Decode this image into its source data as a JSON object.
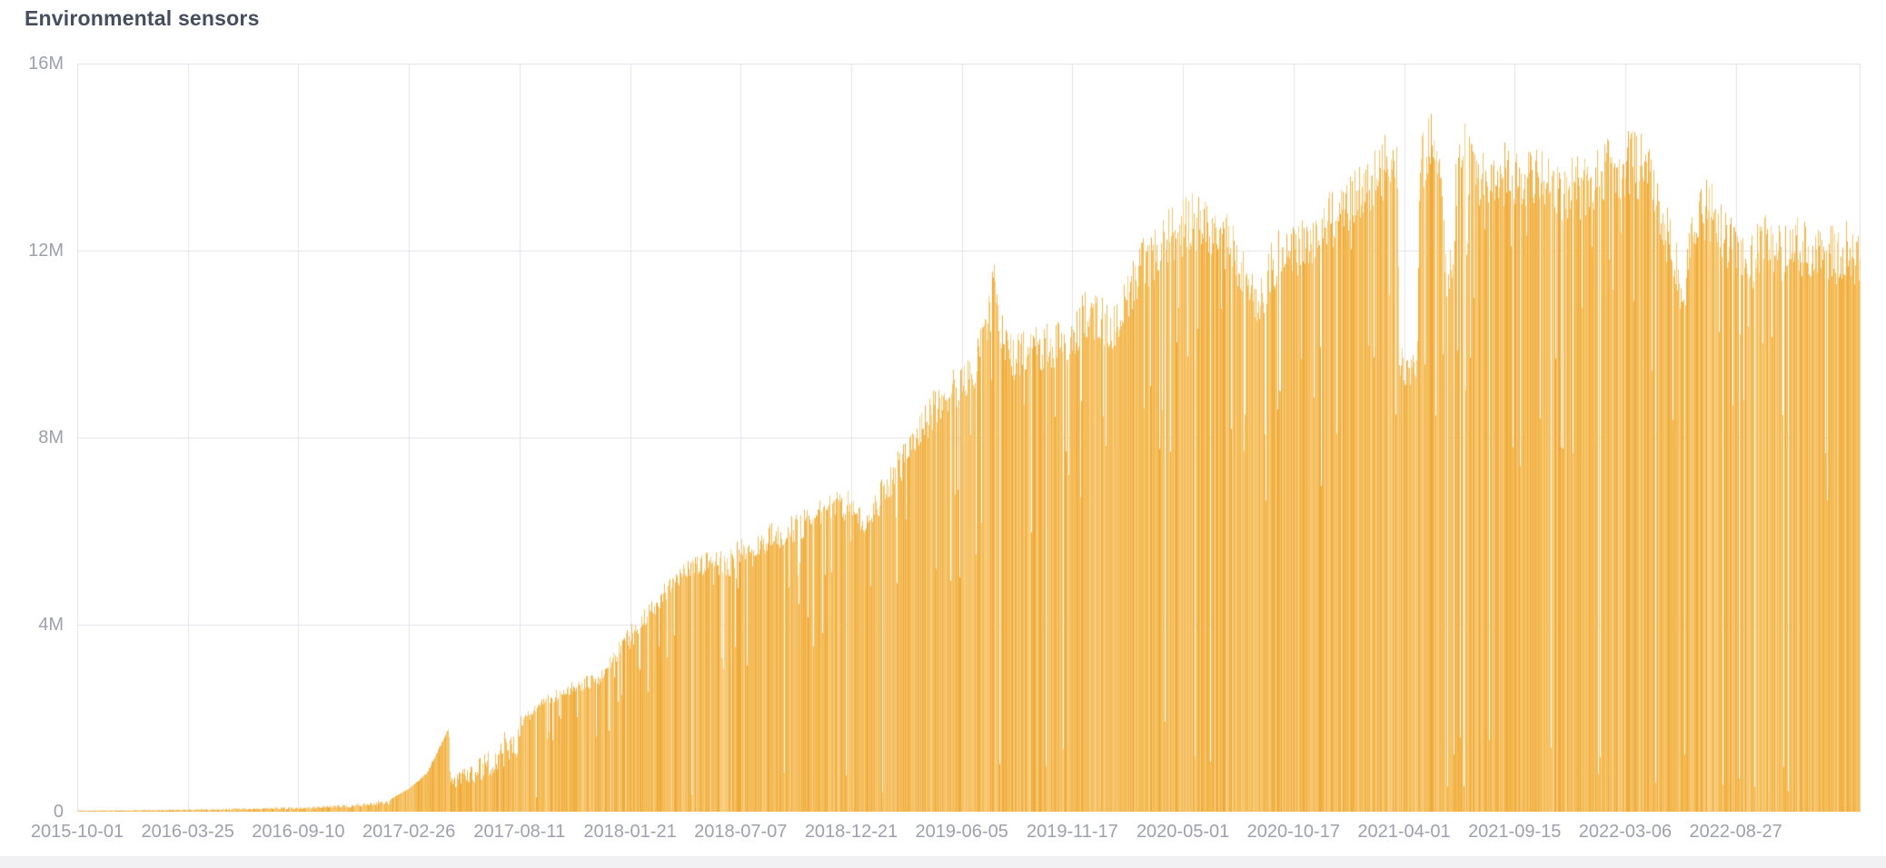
{
  "header": {
    "title": "Environmental sensors"
  },
  "chart_data": {
    "type": "bar",
    "title": "Environmental sensors",
    "xlabel": "",
    "ylabel": "",
    "legend": "none",
    "grid": true,
    "x_axis": {
      "start": "2015-10-01",
      "end_approx": "2023-03",
      "tick_labels": [
        "2015-10-01",
        "2016-03-25",
        "2016-09-10",
        "2017-02-26",
        "2017-08-11",
        "2018-01-21",
        "2018-07-07",
        "2018-12-21",
        "2019-06-05",
        "2019-11-17",
        "2020-05-01",
        "2020-10-17",
        "2021-04-01",
        "2021-09-15",
        "2022-03-06",
        "2022-08-27"
      ]
    },
    "y_axis": {
      "tick_labels": [
        "0",
        "4M",
        "8M",
        "12M",
        "16M"
      ],
      "tick_values": [
        0,
        4000000,
        8000000,
        12000000,
        16000000
      ],
      "range": [
        0,
        16000000
      ]
    },
    "series": [
      {
        "name": "Environmental sensors",
        "granularity": "daily bars (~2700 bars), upper envelope sampled below",
        "values_unit": "millions",
        "envelope_points": [
          [
            0.0,
            0.02
          ],
          [
            0.0621,
            0.05
          ],
          [
            0.1238,
            0.1
          ],
          [
            0.1554,
            0.16
          ],
          [
            0.1757,
            0.28
          ],
          [
            0.1859,
            0.5
          ],
          [
            0.1961,
            0.85
          ],
          [
            0.2083,
            1.82
          ],
          [
            0.2094,
            0.72
          ],
          [
            0.2175,
            0.95
          ],
          [
            0.2318,
            1.4
          ],
          [
            0.2481,
            2.05
          ],
          [
            0.2623,
            2.5
          ],
          [
            0.2776,
            2.8
          ],
          [
            0.2929,
            3.0
          ],
          [
            0.3102,
            4.0
          ],
          [
            0.3285,
            4.85
          ],
          [
            0.3438,
            5.5
          ],
          [
            0.3581,
            5.65
          ],
          [
            0.3642,
            5.5
          ],
          [
            0.3719,
            5.9
          ],
          [
            0.3897,
            6.2
          ],
          [
            0.41,
            6.5
          ],
          [
            0.4253,
            6.95
          ],
          [
            0.434,
            6.85
          ],
          [
            0.4421,
            6.55
          ],
          [
            0.4533,
            7.25
          ],
          [
            0.4686,
            8.3
          ],
          [
            0.4839,
            9.3
          ],
          [
            0.4961,
            9.65
          ],
          [
            0.5043,
            10.1
          ],
          [
            0.5119,
            11.2
          ],
          [
            0.5135,
            12.0
          ],
          [
            0.517,
            10.8
          ],
          [
            0.5247,
            10.2
          ],
          [
            0.545,
            10.5
          ],
          [
            0.5578,
            10.7
          ],
          [
            0.568,
            11.3
          ],
          [
            0.5807,
            10.8
          ],
          [
            0.5934,
            12.1
          ],
          [
            0.6036,
            12.6
          ],
          [
            0.6138,
            13.0
          ],
          [
            0.624,
            13.25
          ],
          [
            0.6342,
            13.3
          ],
          [
            0.6434,
            12.9
          ],
          [
            0.6495,
            12.6
          ],
          [
            0.6556,
            11.9
          ],
          [
            0.6622,
            11.3
          ],
          [
            0.6688,
            12.1
          ],
          [
            0.676,
            12.8
          ],
          [
            0.6821,
            12.6
          ],
          [
            0.6902,
            12.9
          ],
          [
            0.703,
            13.3
          ],
          [
            0.7157,
            13.9
          ],
          [
            0.7269,
            14.3
          ],
          [
            0.735,
            14.6
          ],
          [
            0.7402,
            14.3
          ],
          [
            0.7422,
            9.9
          ],
          [
            0.7514,
            10.3
          ],
          [
            0.7534,
            14.6
          ],
          [
            0.7575,
            15.0
          ],
          [
            0.7606,
            15.3
          ],
          [
            0.7646,
            14.8
          ],
          [
            0.7672,
            12.3
          ],
          [
            0.7713,
            11.9
          ],
          [
            0.7738,
            14.5
          ],
          [
            0.7774,
            14.9
          ],
          [
            0.783,
            14.3
          ],
          [
            0.7922,
            14.1
          ],
          [
            0.7998,
            14.35
          ],
          [
            0.8064,
            14.15
          ],
          [
            0.8176,
            14.3
          ],
          [
            0.8278,
            13.9
          ],
          [
            0.838,
            14.05
          ],
          [
            0.8482,
            14.0
          ],
          [
            0.8583,
            14.45
          ],
          [
            0.868,
            14.6
          ],
          [
            0.8767,
            14.55
          ],
          [
            0.8818,
            14.2
          ],
          [
            0.8889,
            13.4
          ],
          [
            0.8966,
            12.3
          ],
          [
            0.9006,
            11.2
          ],
          [
            0.9047,
            12.6
          ],
          [
            0.9103,
            13.6
          ],
          [
            0.9174,
            13.5
          ],
          [
            0.9246,
            12.9
          ],
          [
            0.9302,
            12.6
          ],
          [
            0.9378,
            12.3
          ],
          [
            0.9475,
            12.9
          ],
          [
            0.9556,
            12.5
          ],
          [
            0.9633,
            12.8
          ],
          [
            0.9709,
            12.6
          ],
          [
            0.9786,
            12.7
          ],
          [
            0.9862,
            12.5
          ],
          [
            0.9939,
            12.7
          ],
          [
            1.0,
            12.35
          ]
        ],
        "notable_features": [
          "sawtooth ramp peaking ~1.8M around 2017-04 then sharp drop to ~0.7M",
          "narrow spike to ~12M around 2019-07",
          "deep notch down to ~10M just around 2021-04-01",
          "all-time peak ~15.3M shortly after 2021-04-01",
          "occasional near-zero outage days appear as thin white slashes"
        ]
      }
    ]
  },
  "style": {
    "title_color": "#464D5E",
    "axis_text_color": "#9EA1AB",
    "grid_color": "#E4E3F0",
    "background": "#FFFFFF",
    "bottom_strip_color": "#F1F1F4",
    "bar_palette": [
      "#EFAA3C",
      "#F4B94F",
      "#F6C267",
      "#F9CF82"
    ]
  },
  "texture": {
    "seed": 7,
    "outage_probability": 0.011,
    "dip_probability": 0.095,
    "smooth_ramp_region": [
      0.1757,
      0.2083
    ]
  }
}
